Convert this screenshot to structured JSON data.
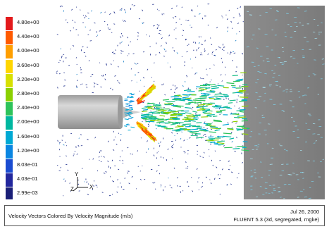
{
  "window": {
    "title": "Velocity Vectors Colored By Velocity Magnitude (m/s)",
    "date": "Jul 26, 2000",
    "solver": "FLUENT 5.3 (3d, segregated, rngke)"
  },
  "legend": {
    "labels": [
      "4.80e+00",
      "4.40e+00",
      "4.00e+00",
      "3.60e+00",
      "3.20e+00",
      "2.80e+00",
      "2.40e+00",
      "2.00e+00",
      "1.60e+00",
      "1.20e+00",
      "8.03e-01",
      "4.03e-01",
      "2.99e-03"
    ],
    "colors": [
      "#e31a1c",
      "#ff5a00",
      "#ff9f00",
      "#ffd600",
      "#d7e000",
      "#8bd000",
      "#2ec35a",
      "#00b7a0",
      "#00a9d4",
      "#0a86e2",
      "#1a4cd1",
      "#22279d",
      "#1a1f77"
    ]
  },
  "axes": {
    "y": "Y",
    "x": "X",
    "z": "Z"
  },
  "scene": {
    "objects": [
      "cylinder-body",
      "nose-cone",
      "outlet-wall"
    ],
    "colors": {
      "cylinder_body": "#c0c0c0",
      "cylinder_shadow": "#8a8a8a",
      "outlet_wall": "#808080",
      "background": "#ffffff"
    }
  }
}
